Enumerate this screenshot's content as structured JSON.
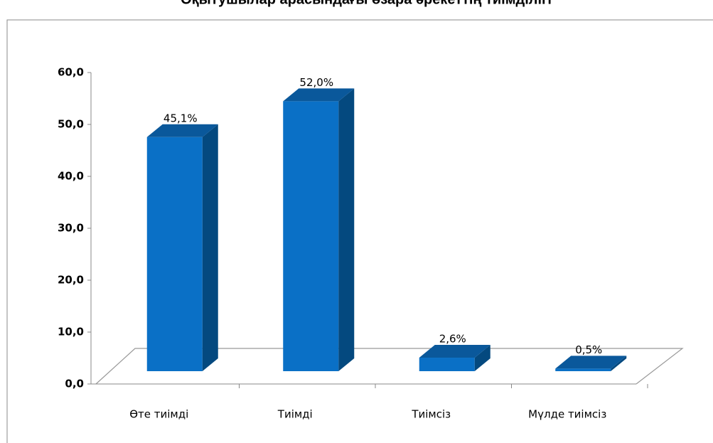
{
  "chart_data": {
    "type": "bar",
    "title": "Оқытушылар арасындағы өзара әрекеттің тиімділігі",
    "categories": [
      "Өте тиімді",
      "Тиімді",
      "Тиімсіз",
      "Мүлде тиімсіз"
    ],
    "values": [
      45.1,
      52.0,
      2.6,
      0.5
    ],
    "value_labels": [
      "45,1%",
      "52,0%",
      "2,6%",
      "0,5%"
    ],
    "color": "#0a70c6",
    "ylim": [
      0,
      60
    ],
    "yticks": [
      {
        "value": 0,
        "label": "0,0"
      },
      {
        "value": 10,
        "label": "10,0"
      },
      {
        "value": 20,
        "label": "20,0"
      },
      {
        "value": 30,
        "label": "30,0"
      },
      {
        "value": 40,
        "label": "40,0"
      },
      {
        "value": 50,
        "label": "50,0"
      },
      {
        "value": 60,
        "label": "60,0"
      }
    ]
  }
}
